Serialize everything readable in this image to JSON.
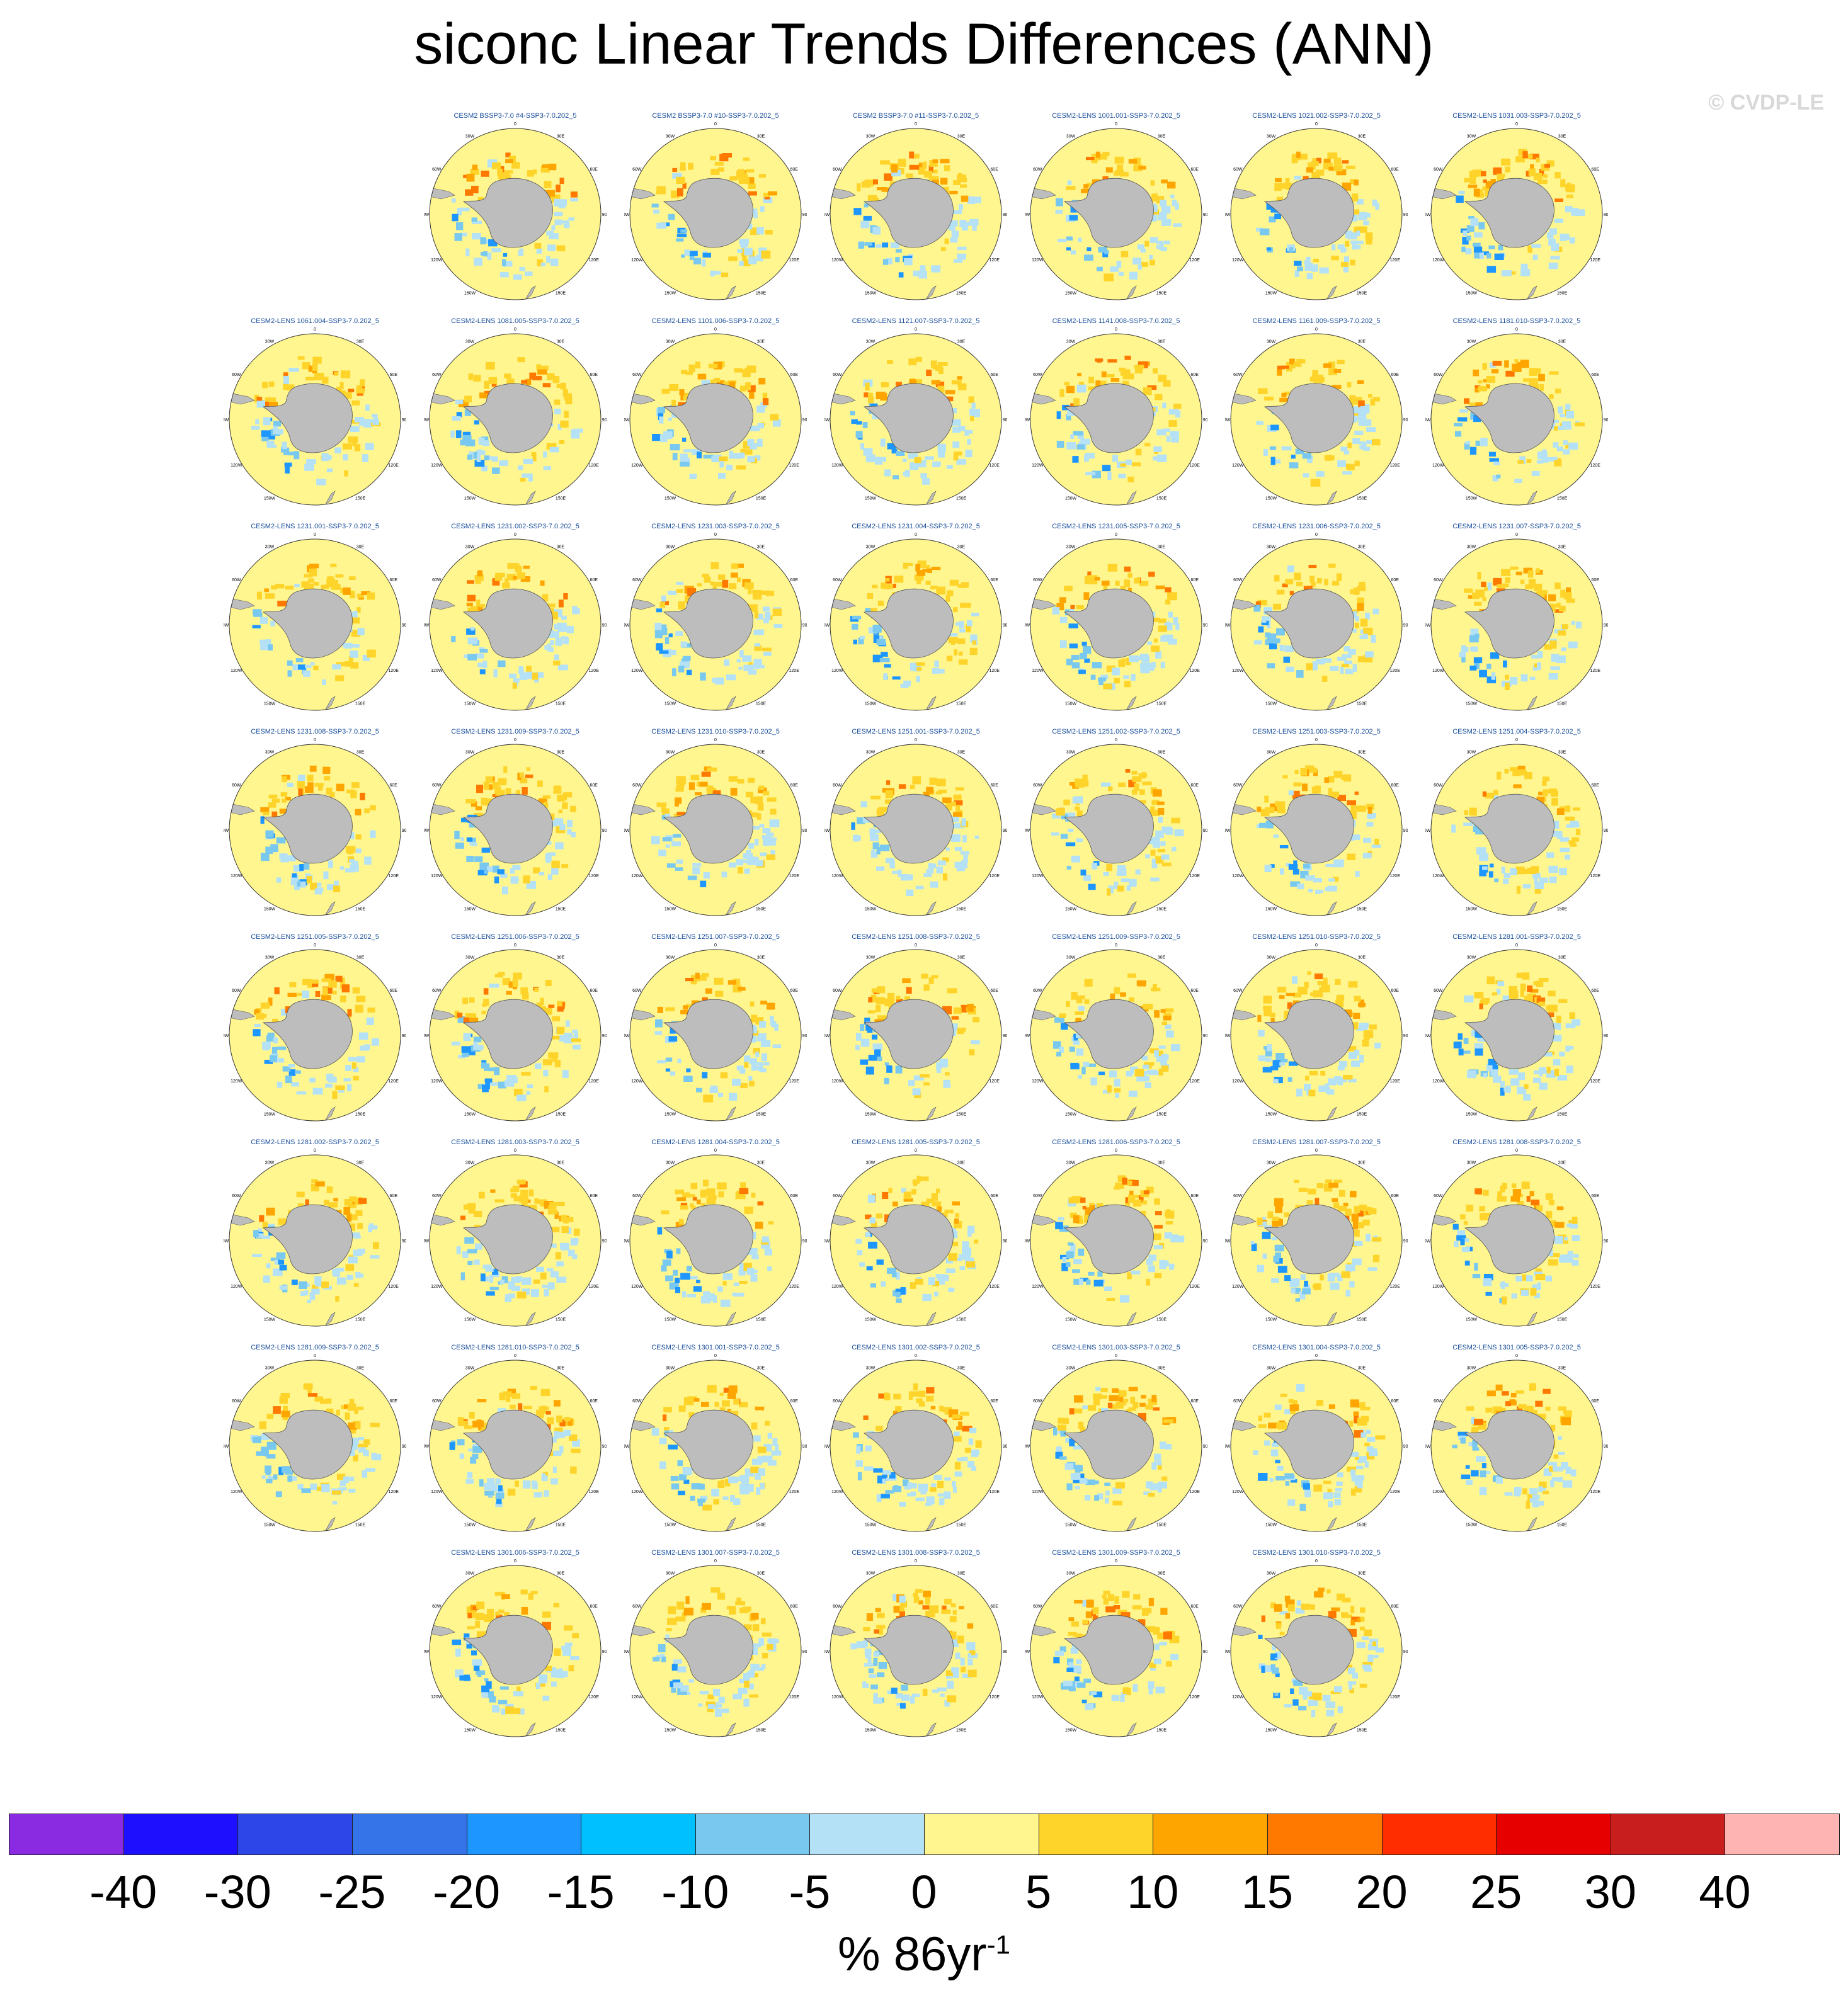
{
  "title": "siconc Linear Trends Differences (ANN)",
  "credit": "© CVDP-LE",
  "colorbar": {
    "labels": [
      "-40",
      "-30",
      "-25",
      "-20",
      "-15",
      "-10",
      "-5",
      "0",
      "5",
      "10",
      "15",
      "20",
      "25",
      "30",
      "40"
    ],
    "colors": [
      "#8a2be2",
      "#1e10ff",
      "#2d46e8",
      "#3574e8",
      "#1e96ff",
      "#00c0ff",
      "#78c8f0",
      "#b4e1f5",
      "#fff68f",
      "#ffd42a",
      "#ffa500",
      "#ff7800",
      "#ff2d00",
      "#e60000",
      "#c81e1e",
      "#ffb4b4"
    ],
    "units_base": "% 86yr",
    "units_exp": "-1"
  },
  "chart_data": {
    "type": "heatmap",
    "title": "siconc Linear Trends Differences (ANN)",
    "projection": "south-polar stereographic",
    "longitude_labels": [
      "0",
      "30E",
      "60E",
      "90E",
      "120E",
      "150E",
      "180",
      "150W",
      "120W",
      "90W",
      "60W",
      "30W"
    ],
    "panels": [
      "CESM2 BSSP3-7.0 #4-SSP3-7.0.202_5",
      "CESM2 BSSP3-7.0 #10-SSP3-7.0.202_5",
      "CESM2 BSSP3-7.0 #11-SSP3-7.0.202_5",
      "CESM2-LENS 1001.001-SSP3-7.0.202_5",
      "CESM2-LENS 1021.002-SSP3-7.0.202_5",
      "CESM2-LENS 1031.003-SSP3-7.0.202_5",
      "CESM2-LENS 1061.004-SSP3-7.0.202_5",
      "CESM2-LENS 1081.005-SSP3-7.0.202_5",
      "CESM2-LENS 1101.006-SSP3-7.0.202_5",
      "CESM2-LENS 1121.007-SSP3-7.0.202_5",
      "CESM2-LENS 1141.008-SSP3-7.0.202_5",
      "CESM2-LENS 1161.009-SSP3-7.0.202_5",
      "CESM2-LENS 1181.010-SSP3-7.0.202_5",
      "CESM2-LENS 1231.001-SSP3-7.0.202_5",
      "CESM2-LENS 1231.002-SSP3-7.0.202_5",
      "CESM2-LENS 1231.003-SSP3-7.0.202_5",
      "CESM2-LENS 1231.004-SSP3-7.0.202_5",
      "CESM2-LENS 1231.005-SSP3-7.0.202_5",
      "CESM2-LENS 1231.006-SSP3-7.0.202_5",
      "CESM2-LENS 1231.007-SSP3-7.0.202_5",
      "CESM2-LENS 1231.008-SSP3-7.0.202_5",
      "CESM2-LENS 1231.009-SSP3-7.0.202_5",
      "CESM2-LENS 1231.010-SSP3-7.0.202_5",
      "CESM2-LENS 1251.001-SSP3-7.0.202_5",
      "CESM2-LENS 1251.002-SSP3-7.0.202_5",
      "CESM2-LENS 1251.003-SSP3-7.0.202_5",
      "CESM2-LENS 1251.004-SSP3-7.0.202_5",
      "CESM2-LENS 1251.005-SSP3-7.0.202_5",
      "CESM2-LENS 1251.006-SSP3-7.0.202_5",
      "CESM2-LENS 1251.007-SSP3-7.0.202_5",
      "CESM2-LENS 1251.008-SSP3-7.0.202_5",
      "CESM2-LENS 1251.009-SSP3-7.0.202_5",
      "CESM2-LENS 1251.010-SSP3-7.0.202_5",
      "CESM2-LENS 1281.001-SSP3-7.0.202_5",
      "CESM2-LENS 1281.002-SSP3-7.0.202_5",
      "CESM2-LENS 1281.003-SSP3-7.0.202_5",
      "CESM2-LENS 1281.004-SSP3-7.0.202_5",
      "CESM2-LENS 1281.005-SSP3-7.0.202_5",
      "CESM2-LENS 1281.006-SSP3-7.0.202_5",
      "CESM2-LENS 1281.007-SSP3-7.0.202_5",
      "CESM2-LENS 1281.008-SSP3-7.0.202_5",
      "CESM2-LENS 1281.009-SSP3-7.0.202_5",
      "CESM2-LENS 1281.010-SSP3-7.0.202_5",
      "CESM2-LENS 1301.001-SSP3-7.0.202_5",
      "CESM2-LENS 1301.002-SSP3-7.0.202_5",
      "CESM2-LENS 1301.003-SSP3-7.0.202_5",
      "CESM2-LENS 1301.004-SSP3-7.0.202_5",
      "CESM2-LENS 1301.005-SSP3-7.0.202_5",
      "CESM2-LENS 1301.006-SSP3-7.0.202_5",
      "CESM2-LENS 1301.007-SSP3-7.0.202_5",
      "CESM2-LENS 1301.008-SSP3-7.0.202_5",
      "CESM2-LENS 1301.009-SSP3-7.0.202_5",
      "CESM2-LENS 1301.010-SSP3-7.0.202_5"
    ],
    "colorbar_levels": [
      -40,
      -30,
      -25,
      -20,
      -15,
      -10,
      -5,
      0,
      5,
      10,
      15,
      20,
      25,
      30,
      40
    ],
    "units": "% 86yr-1"
  }
}
